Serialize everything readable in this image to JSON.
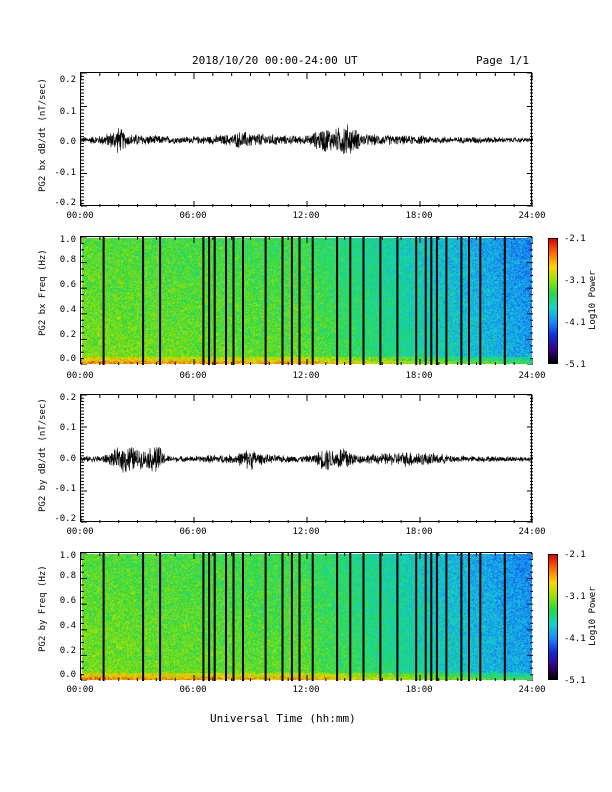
{
  "header": {
    "title": "2018/10/20  00:00-24:00 UT",
    "page": "Page 1/1"
  },
  "xlabel": "Universal Time (hh:mm)",
  "xticks": [
    "00:00",
    "06:00",
    "12:00",
    "18:00",
    "24:00"
  ],
  "chart_data": [
    {
      "type": "line",
      "ylabel": "PG2 bx dB/dt (nT/sec)",
      "yticks": [
        "0.2",
        "0.1",
        "0.0",
        "-0.1",
        "-0.2"
      ],
      "ylim": [
        -0.2,
        0.2
      ],
      "xlim": [
        0,
        24
      ],
      "envelope": {
        "x": [
          0,
          1,
          1.5,
          2,
          2.5,
          3,
          4,
          5,
          6,
          7,
          8,
          8.5,
          9,
          10,
          11,
          12,
          12.5,
          13,
          13.5,
          14,
          15,
          16,
          17,
          18,
          19,
          20,
          21,
          22,
          23,
          24
        ],
        "amp": [
          0.01,
          0.015,
          0.025,
          0.045,
          0.02,
          0.02,
          0.015,
          0.012,
          0.012,
          0.015,
          0.02,
          0.03,
          0.025,
          0.02,
          0.015,
          0.015,
          0.03,
          0.045,
          0.035,
          0.06,
          0.02,
          0.018,
          0.015,
          0.015,
          0.012,
          0.01,
          0.012,
          0.01,
          0.008,
          0.008
        ]
      }
    },
    {
      "type": "heatmap",
      "ylabel": "PG2 bx Freq (Hz)",
      "yticks": [
        "1.0",
        "0.8",
        "0.6",
        "0.4",
        "0.2",
        "0.0"
      ],
      "ylim": [
        0,
        1
      ],
      "xlim": [
        0,
        24
      ],
      "colorbar": {
        "title": "Log10 Power",
        "ticks": [
          "-2.1",
          "-3.1",
          "-4.1",
          "-5.1"
        ],
        "range": [
          -5.1,
          -2.1
        ]
      },
      "gap_times": [
        1.2,
        3.3,
        4.2,
        6.5,
        6.8,
        7.1,
        7.7,
        8.1,
        8.6,
        9.8,
        10.7,
        11.2,
        11.6,
        12.3,
        13.6,
        14.3,
        15.0,
        15.9,
        16.8,
        17.8,
        18.3,
        18.6,
        18.9,
        19.4,
        20.2,
        20.6,
        21.2,
        22.5
      ]
    },
    {
      "type": "line",
      "ylabel": "PG2 by dB/dt (nT/sec)",
      "yticks": [
        "0.2",
        "0.1",
        "0.0",
        "-0.1",
        "-0.2"
      ],
      "ylim": [
        -0.2,
        0.2
      ],
      "xlim": [
        0,
        24
      ],
      "envelope": {
        "x": [
          0,
          1,
          1.5,
          2,
          2.5,
          3,
          3.5,
          4,
          4.5,
          5,
          6,
          7,
          8,
          8.5,
          9,
          9.5,
          10,
          11,
          12,
          12.5,
          13,
          13.5,
          14,
          14.5,
          15,
          16,
          17,
          17.5,
          18,
          19,
          20,
          21,
          22,
          23,
          24
        ],
        "amp": [
          0.01,
          0.012,
          0.02,
          0.04,
          0.055,
          0.035,
          0.03,
          0.06,
          0.015,
          0.01,
          0.01,
          0.015,
          0.015,
          0.025,
          0.04,
          0.02,
          0.015,
          0.012,
          0.012,
          0.02,
          0.045,
          0.03,
          0.055,
          0.02,
          0.015,
          0.02,
          0.025,
          0.028,
          0.025,
          0.018,
          0.012,
          0.01,
          0.01,
          0.01,
          0.008
        ]
      }
    },
    {
      "type": "heatmap",
      "ylabel": "PG2 by Freq (Hz)",
      "yticks": [
        "1.0",
        "0.8",
        "0.6",
        "0.4",
        "0.2",
        "0.0"
      ],
      "ylim": [
        0,
        1
      ],
      "xlim": [
        0,
        24
      ],
      "colorbar": {
        "title": "Log10 Power",
        "ticks": [
          "-2.1",
          "-3.1",
          "-4.1",
          "-5.1"
        ],
        "range": [
          -5.1,
          -2.1
        ]
      },
      "gap_times": [
        1.2,
        3.3,
        4.2,
        6.5,
        6.8,
        7.1,
        7.7,
        8.1,
        8.6,
        9.8,
        10.7,
        11.2,
        11.6,
        12.3,
        13.6,
        14.3,
        15.0,
        15.9,
        16.8,
        17.8,
        18.3,
        18.6,
        18.9,
        19.4,
        20.2,
        20.6,
        21.2,
        22.5
      ]
    }
  ],
  "colors": {
    "trace": "#000000",
    "frame": "#000000"
  }
}
